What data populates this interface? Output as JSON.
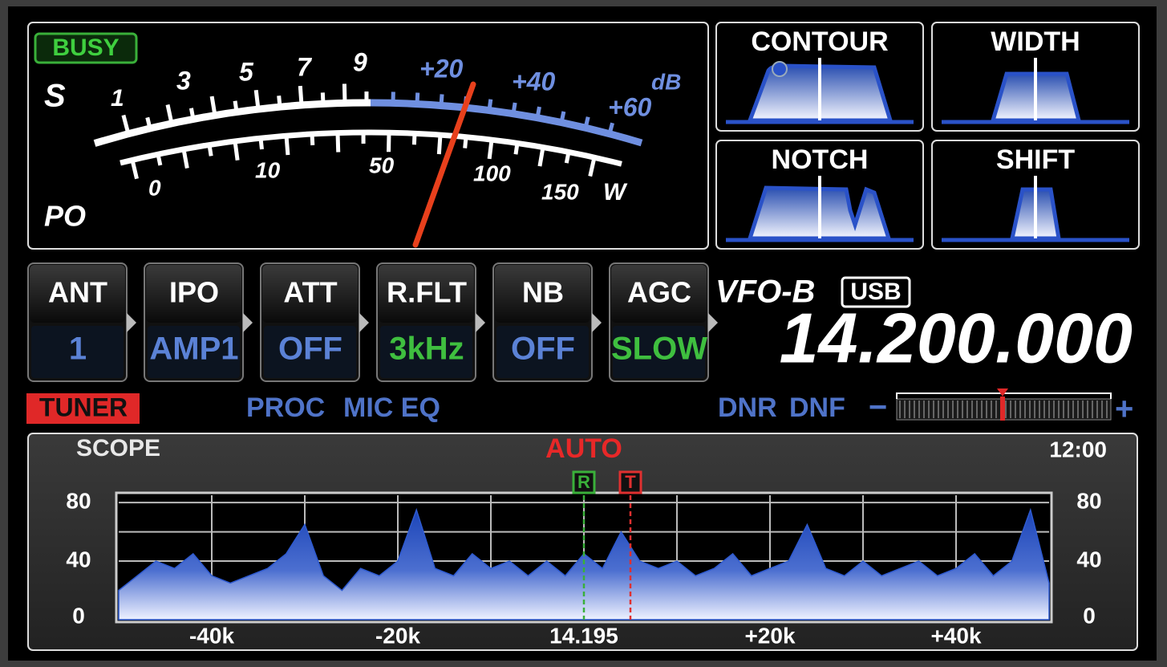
{
  "meter": {
    "busy": "BUSY",
    "s_label": "S",
    "s_scale": [
      "1",
      "3",
      "5",
      "7",
      "9"
    ],
    "db_scale": [
      "+20",
      "+40",
      "+60"
    ],
    "db_unit": "dB",
    "po_label": "PO",
    "po_scale": [
      "0",
      "10",
      "50",
      "100",
      "150"
    ],
    "po_unit": "W"
  },
  "filters": [
    "CONTOUR",
    "WIDTH",
    "NOTCH",
    "SHIFT"
  ],
  "buttons": [
    {
      "label": "ANT",
      "value": "1",
      "color": "#5b82d6"
    },
    {
      "label": "IPO",
      "value": "AMP1",
      "color": "#5b82d6"
    },
    {
      "label": "ATT",
      "value": "OFF",
      "color": "#5b82d6"
    },
    {
      "label": "R.FLT",
      "value": "3kHz",
      "color": "#3fbf3f"
    },
    {
      "label": "NB",
      "value": "OFF",
      "color": "#5b82d6"
    },
    {
      "label": "AGC",
      "value": "SLOW",
      "color": "#3fbf3f"
    }
  ],
  "vfo": {
    "name": "VFO-B",
    "mode": "USB",
    "frequency": "14.200.000"
  },
  "status": {
    "tuner": "TUNER",
    "proc": "PROC",
    "mic_eq": "MIC EQ",
    "dnr": "DNR",
    "dnf": "DNF",
    "minus": "−",
    "plus": "+"
  },
  "scope": {
    "title": "SCOPE",
    "mode": "AUTO",
    "time": "12:00",
    "markers": [
      {
        "label": "R",
        "x": 0,
        "color": "#3ab03a"
      },
      {
        "label": "T",
        "x": 5,
        "color": "#e03030"
      }
    ],
    "xlim": [
      -50,
      50
    ],
    "ylim": [
      0,
      85
    ],
    "xticks": [
      {
        "value": -40,
        "label": "-40k"
      },
      {
        "value": -20,
        "label": "-20k"
      },
      {
        "value": 0,
        "label": "14.195"
      },
      {
        "value": 20,
        "label": "+20k"
      },
      {
        "value": 40,
        "label": "+40k"
      }
    ],
    "yticks": [
      0,
      40,
      80
    ],
    "xgrid": [
      -40,
      -30,
      -20,
      -10,
      0,
      10,
      20,
      30,
      40
    ],
    "ygrid": [
      20,
      40,
      60,
      80
    ],
    "spectrum": {
      "x": [
        -50,
        -48,
        -46,
        -44,
        -42,
        -40,
        -38,
        -36,
        -34,
        -32,
        -30,
        -28,
        -26,
        -24,
        -22,
        -20,
        -18,
        -16,
        -14,
        -12,
        -10,
        -8,
        -6,
        -4,
        -2,
        0,
        2,
        4,
        6,
        8,
        10,
        12,
        14,
        16,
        18,
        20,
        22,
        24,
        26,
        28,
        30,
        32,
        34,
        36,
        38,
        40,
        42,
        44,
        46,
        48,
        50
      ],
      "values": [
        20,
        30,
        40,
        35,
        45,
        30,
        25,
        30,
        35,
        45,
        65,
        30,
        20,
        35,
        30,
        40,
        75,
        35,
        30,
        45,
        35,
        40,
        30,
        40,
        30,
        45,
        35,
        60,
        40,
        35,
        40,
        30,
        35,
        45,
        30,
        35,
        40,
        65,
        35,
        30,
        40,
        30,
        35,
        40,
        30,
        35,
        45,
        30,
        40,
        75,
        25
      ]
    }
  }
}
